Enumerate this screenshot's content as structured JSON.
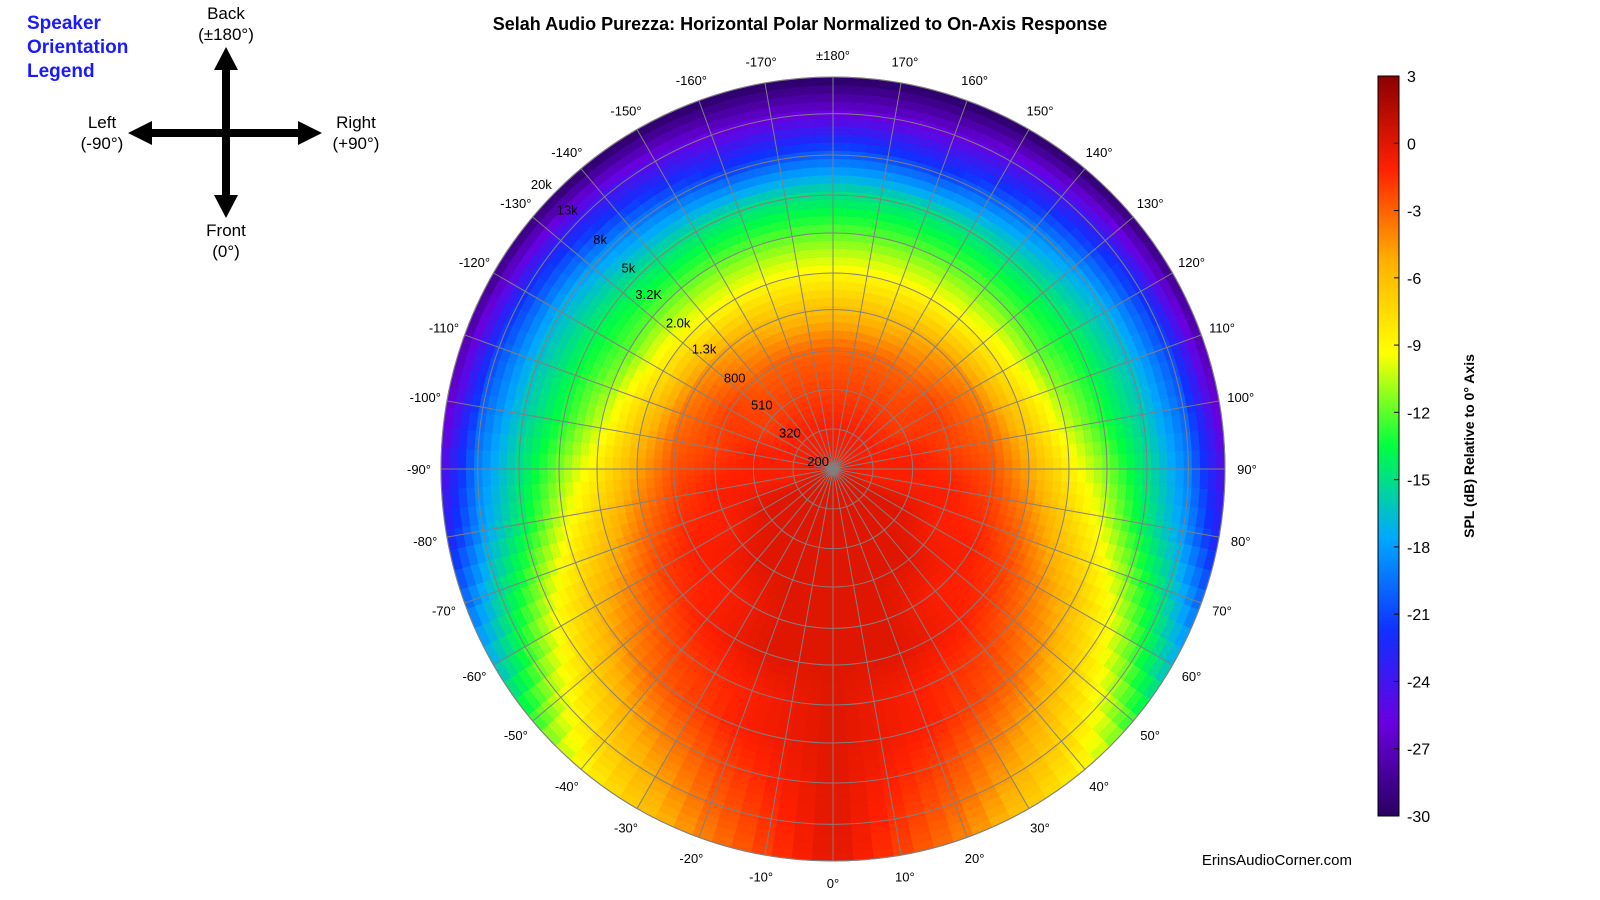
{
  "legend": {
    "title_lines": [
      "Speaker",
      "Orientation",
      "Legend"
    ],
    "back": "Back",
    "back_angle": "(±180°)",
    "left": "Left",
    "left_angle": "(-90°)",
    "right": "Right",
    "right_angle": "(+90°)",
    "front": "Front",
    "front_angle": "(0°)"
  },
  "credit": "ErinsAudioCorner.com",
  "chart_data": {
    "type": "heatmap",
    "subtype": "polar",
    "title": "Selah Audio Purezza: Horizontal Polar Normalized to On-Axis Response",
    "angle_labels": [
      "0°",
      "10°",
      "20°",
      "30°",
      "40°",
      "50°",
      "60°",
      "70°",
      "80°",
      "90°",
      "100°",
      "110°",
      "120°",
      "130°",
      "140°",
      "150°",
      "160°",
      "170°",
      "±180°",
      "-170°",
      "-160°",
      "-150°",
      "-140°",
      "-130°",
      "-120°",
      "-110°",
      "-100°",
      "-90°",
      "-80°",
      "-70°",
      "-60°",
      "-50°",
      "-40°",
      "-30°",
      "-20°",
      "-10°"
    ],
    "angle_values": [
      0,
      10,
      20,
      30,
      40,
      50,
      60,
      70,
      80,
      90,
      100,
      110,
      120,
      130,
      140,
      150,
      160,
      170,
      180,
      -170,
      -160,
      -150,
      -140,
      -130,
      -120,
      -110,
      -100,
      -90,
      -80,
      -70,
      -60,
      -50,
      -40,
      -30,
      -20,
      -10
    ],
    "radial_axis": "frequency (Hz), logarithmic",
    "radial_labels": [
      "200",
      "320",
      "510",
      "800",
      "1.3k",
      "2.0k",
      "3.2K",
      "5k",
      "8k",
      "13k",
      "20k"
    ],
    "radial_values": [
      200,
      320,
      510,
      800,
      1300,
      2000,
      3200,
      5000,
      8000,
      13000,
      20000
    ],
    "colorbar": {
      "label": "SPL (dB) Relative to 0° Axis",
      "range": [
        -30,
        3
      ],
      "ticks": [
        "3",
        "0",
        "-3",
        "-6",
        "-9",
        "-12",
        "-15",
        "-18",
        "-21",
        "-24",
        "-27",
        "-30"
      ],
      "tick_values": [
        3,
        0,
        -3,
        -6,
        -9,
        -12,
        -15,
        -18,
        -21,
        -24,
        -27,
        -30
      ],
      "colormap": [
        "#2a0062",
        "#6a00e0",
        "#1030ff",
        "#00a8ff",
        "#00ff40",
        "#ffff00",
        "#ffb000",
        "#ff2000",
        "#8b0000"
      ]
    },
    "approx_level_db_by_angle_and_frequency": {
      "frequencies": [
        200,
        320,
        510,
        800,
        1300,
        2000,
        3200,
        5000,
        8000,
        13000,
        20000
      ],
      "angles_abs": [
        0,
        20,
        40,
        60,
        80,
        100,
        120,
        140,
        160,
        180
      ],
      "levels": [
        [
          0,
          0,
          0,
          0,
          0,
          0,
          0,
          0,
          0,
          0,
          0
        ],
        [
          0,
          0,
          0,
          0,
          0,
          0,
          -1,
          -1,
          -2,
          -3,
          -4
        ],
        [
          0,
          0,
          0,
          0,
          -1,
          -1,
          -2,
          -3,
          -5,
          -7,
          -9
        ],
        [
          0,
          0,
          0,
          -1,
          -1,
          -2,
          -4,
          -6,
          -9,
          -13,
          -17
        ],
        [
          0,
          -1,
          -1,
          -1,
          -2,
          -4,
          -7,
          -10,
          -14,
          -18,
          -23
        ],
        [
          0,
          -1,
          -1,
          -2,
          -3,
          -6,
          -10,
          -13,
          -16,
          -20,
          -27
        ],
        [
          -1,
          -1,
          -2,
          -2,
          -4,
          -8,
          -12,
          -14,
          -17,
          -22,
          -29
        ],
        [
          -1,
          -1,
          -2,
          -3,
          -5,
          -9,
          -12,
          -15,
          -19,
          -24,
          -30
        ],
        [
          -1,
          -1,
          -2,
          -3,
          -6,
          -9,
          -12,
          -15,
          -21,
          -26,
          -30
        ],
        [
          -1,
          -1,
          -2,
          -3,
          -6,
          -9,
          -12,
          -15,
          -20,
          -26,
          -30
        ]
      ]
    }
  }
}
